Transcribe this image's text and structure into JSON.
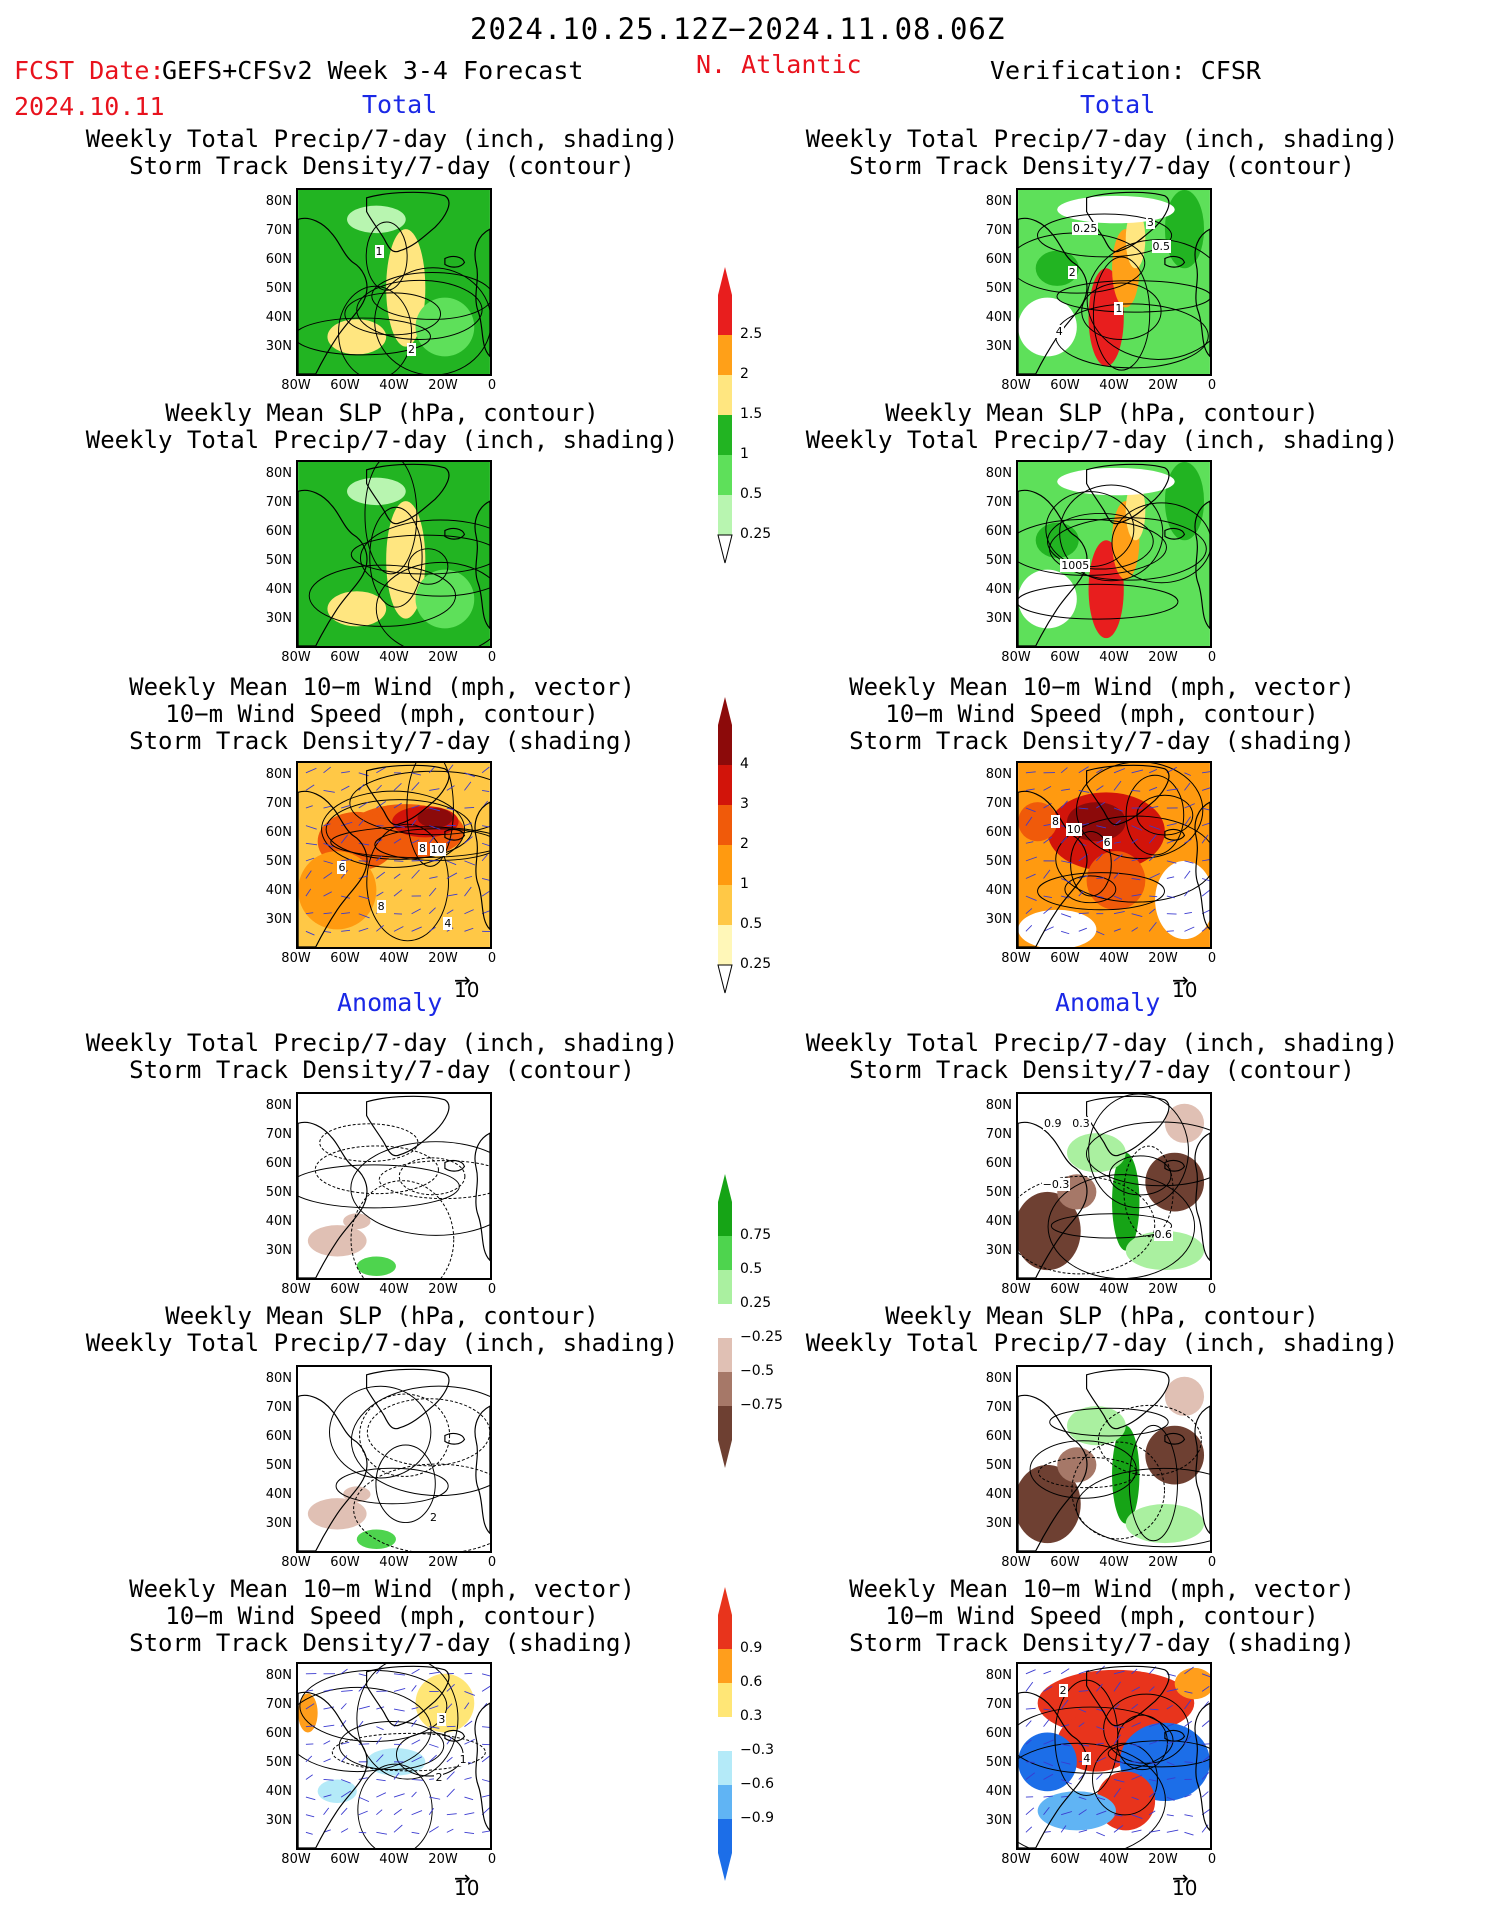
{
  "header": {
    "date_range": "2024.10.25.12Z−2024.11.08.06Z",
    "fcst_label": "FCST Date:",
    "fcst_date": "2024.10.11",
    "forecast_title": "GEFS+CFSv2 Week 3-4 Forecast",
    "region": "N. Atlantic",
    "verification": "Verification: CFSR",
    "total_label": "Total",
    "anomaly_label": "Anomaly"
  },
  "titles": {
    "precip_storm": [
      "Weekly Total Precip/7-day (inch, shading)",
      "Storm Track Density/7-day (contour)"
    ],
    "slp_precip": [
      "Weekly Mean SLP (hPa, contour)",
      "Weekly Total Precip/7-day (inch, shading)"
    ],
    "wind_storm": [
      "Weekly Mean 10−m Wind (mph, vector)",
      "10−m Wind Speed (mph, contour)",
      "Storm Track Density/7-day (shading)"
    ]
  },
  "axes": {
    "lat_labels": [
      "80N",
      "70N",
      "60N",
      "50N",
      "40N",
      "30N"
    ],
    "lon_labels": [
      "80W",
      "60W",
      "40W",
      "20W",
      "0"
    ]
  },
  "vector_ref": "10",
  "colorbars": {
    "precip_total": {
      "levels": [
        "0.25",
        "0.5",
        "1",
        "1.5",
        "2",
        "2.5"
      ],
      "colors": [
        "#b8f5b0",
        "#5ee05a",
        "#22b422",
        "#ffe680",
        "#ffa018",
        "#e81e1e"
      ]
    },
    "storm_total": {
      "levels": [
        "0.25",
        "0.5",
        "1",
        "2",
        "3",
        "4"
      ],
      "colors": [
        "#fff7b8",
        "#ffc846",
        "#ff9a10",
        "#f05a0a",
        "#d2140a",
        "#8c0a0a"
      ]
    },
    "precip_anom": {
      "levels": [
        "0.75",
        "0.5",
        "0.25",
        "−0.25",
        "−0.5",
        "−0.75"
      ],
      "colors": [
        "#16a416",
        "#4ed44e",
        "#aaf0a0",
        "#ffffff",
        "#e0c0b4",
        "#a67868",
        "#6e4032"
      ]
    },
    "storm_anom": {
      "levels": [
        "0.9",
        "0.6",
        "0.3",
        "−0.3",
        "−0.6",
        "−0.9"
      ],
      "colors": [
        "#e8341c",
        "#ff9e1c",
        "#ffe676",
        "#ffffff",
        "#b4eaf8",
        "#60b4f4",
        "#1c6ee8"
      ]
    }
  },
  "contour_labels": {
    "r1_left": [
      "2",
      "1"
    ],
    "r1_right": [
      "4",
      "3",
      "0.25",
      "0.5",
      "1",
      "2"
    ],
    "r2_right": [
      "1005"
    ],
    "r3_left": [
      "8",
      "10",
      "6",
      "8",
      "4"
    ],
    "r3_right": [
      "10",
      "8",
      "6"
    ],
    "r4_right": [
      "0.3",
      "0.6",
      "0.9",
      "−0.3"
    ],
    "r5_left": [
      "2"
    ],
    "r6_left": [
      "2",
      "3",
      "1"
    ],
    "r6_right": [
      "4",
      "2"
    ]
  }
}
